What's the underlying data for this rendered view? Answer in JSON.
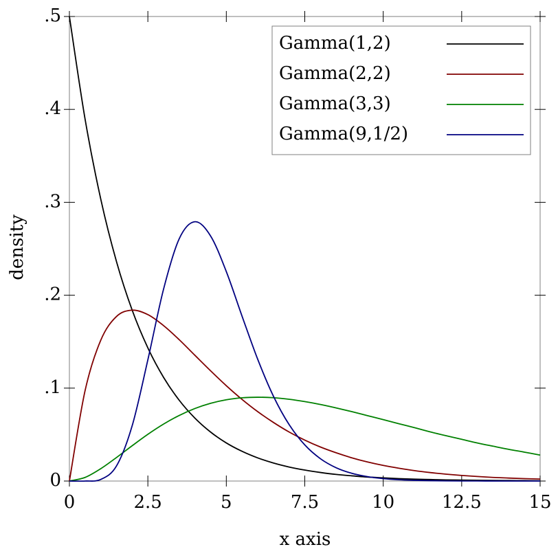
{
  "chart_data": {
    "type": "line",
    "x_label": "x axis",
    "y_label": "density",
    "x": [
      0,
      0.5,
      1,
      1.5,
      2,
      2.5,
      3,
      3.5,
      4,
      4.5,
      5,
      5.5,
      6,
      6.5,
      7,
      7.5,
      8,
      8.5,
      9,
      9.5,
      10,
      10.5,
      11,
      11.5,
      12,
      12.5,
      13,
      13.5,
      14,
      14.5,
      15
    ],
    "series": [
      {
        "name": "Gamma(1,2)",
        "color": "#000000",
        "values": [
          0.5,
          0.3894,
          0.3033,
          0.2362,
          0.1839,
          0.1433,
          0.1116,
          0.0869,
          0.0677,
          0.0527,
          0.041,
          0.032,
          0.0249,
          0.0194,
          0.0151,
          0.0118,
          0.0092,
          0.0071,
          0.0056,
          0.0043,
          0.0034,
          0.0026,
          0.002,
          0.0016,
          0.0012,
          0.001,
          0.0008,
          0.0006,
          0.0005,
          0.0004,
          0.0003
        ]
      },
      {
        "name": "Gamma(2,2)",
        "color": "#800000",
        "values": [
          0,
          0.0974,
          0.1516,
          0.1771,
          0.1839,
          0.1791,
          0.1673,
          0.1521,
          0.1353,
          0.1186,
          0.1026,
          0.0879,
          0.0747,
          0.0631,
          0.0528,
          0.0441,
          0.0366,
          0.0304,
          0.025,
          0.0205,
          0.0168,
          0.0138,
          0.0112,
          0.0091,
          0.0074,
          0.006,
          0.0049,
          0.0039,
          0.0032,
          0.0026,
          0.0021
        ]
      },
      {
        "name": "Gamma(3,3)",
        "color": "#008000",
        "values": [
          0,
          0.0039,
          0.0133,
          0.0253,
          0.038,
          0.0503,
          0.0613,
          0.0706,
          0.0781,
          0.0837,
          0.0875,
          0.0896,
          0.0902,
          0.0897,
          0.088,
          0.0855,
          0.0824,
          0.0787,
          0.0747,
          0.0704,
          0.0661,
          0.0617,
          0.0574,
          0.0529,
          0.0488,
          0.0449,
          0.041,
          0.0375,
          0.0341,
          0.0311,
          0.0279
        ]
      },
      {
        "name": "Gamma(9,1/2)",
        "color": "#000080",
        "values": [
          0,
          0,
          0.0017,
          0.0162,
          0.0595,
          0.1305,
          0.2065,
          0.2608,
          0.2791,
          0.2637,
          0.2254,
          0.1776,
          0.1311,
          0.0914,
          0.0608,
          0.0389,
          0.024,
          0.0143,
          0.0083,
          0.0047,
          0.0026,
          0.0014,
          0.0008,
          0.0004,
          0.0002,
          0.0001,
          0.0001,
          0,
          0,
          0,
          0
        ]
      }
    ],
    "xlim": [
      0,
      15
    ],
    "ylim": [
      0,
      0.5
    ],
    "xticks": [
      0,
      2.5,
      5,
      7.5,
      10,
      12.5,
      15
    ],
    "yticks": [
      0,
      {
        "value": 0.1,
        "label": ".1"
      },
      {
        "value": 0.2,
        "label": ".2"
      },
      {
        "value": 0.3,
        "label": ".3"
      },
      {
        "value": 0.4,
        "label": ".4"
      },
      {
        "value": 0.5,
        "label": ".5"
      }
    ],
    "legend_position": "top-right"
  }
}
